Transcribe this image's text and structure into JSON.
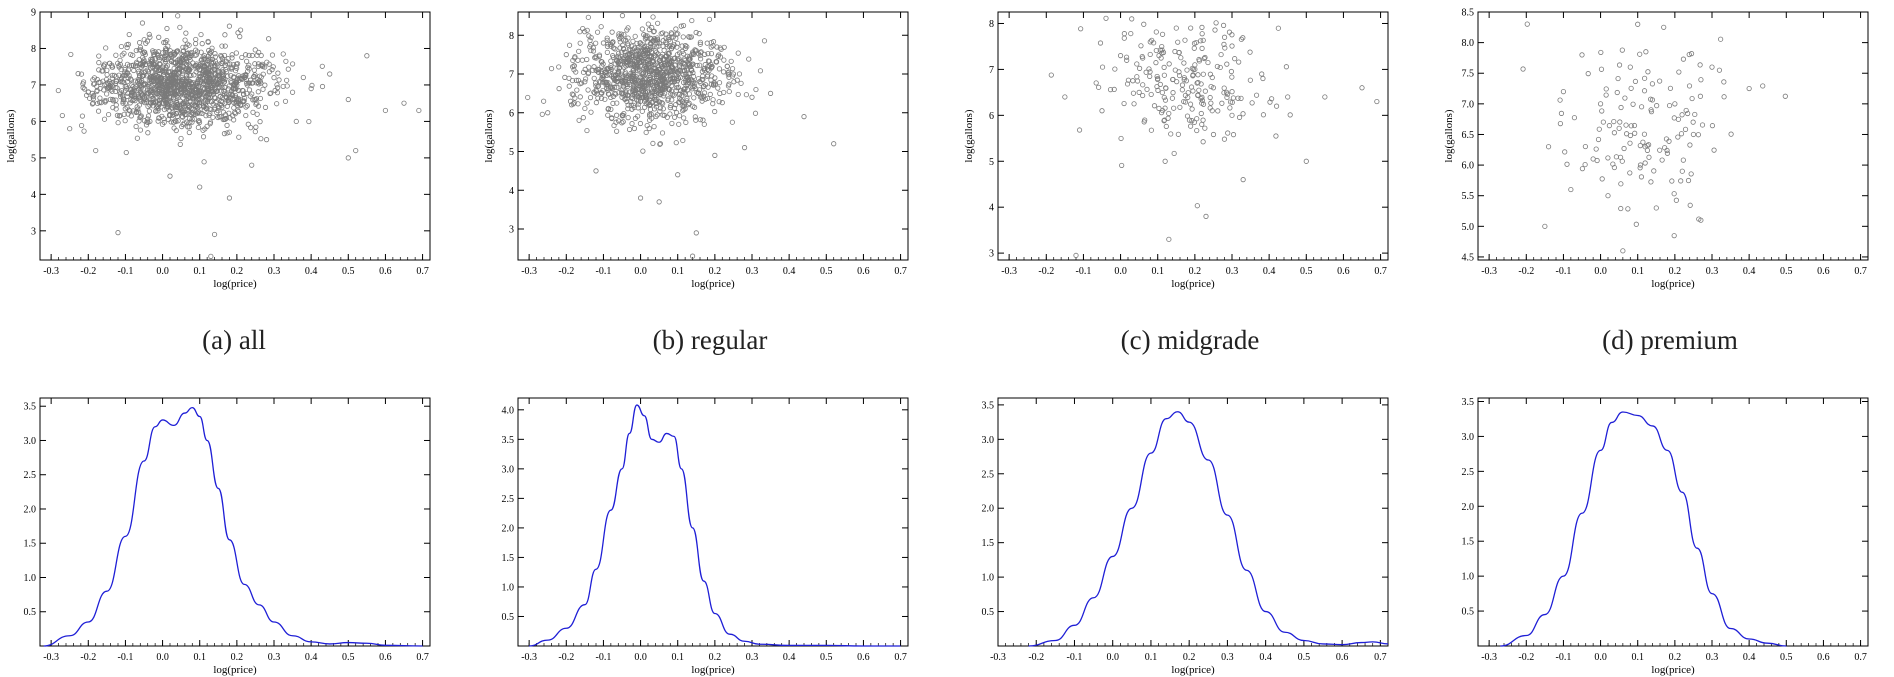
{
  "figure": {
    "captions": [
      "(a) all",
      "(b) regular",
      "(c) midgrade",
      "(d) premium"
    ]
  },
  "colors": {
    "scatter_marker": "#7a7a7a",
    "density_line": "#1f1fd6",
    "axis": "#000000"
  },
  "chart_data": [
    {
      "id": "scatter-all",
      "type": "scatter",
      "title": "",
      "xlabel": "log(price)",
      "ylabel": "log(gallons)",
      "xlim": [
        -0.33,
        0.72
      ],
      "ylim": [
        2.2,
        9.0
      ],
      "xticks": [
        -0.3,
        -0.2,
        -0.1,
        0.0,
        0.1,
        0.2,
        0.3,
        0.4,
        0.5,
        0.6,
        0.7
      ],
      "xtick_labels": [
        "-0.3",
        "-0.2",
        "-0.1",
        "0.0",
        "0.1",
        "0.2",
        "0.3",
        "0.4",
        "0.5",
        "0.6",
        "0.7"
      ],
      "yticks": [
        3,
        4,
        5,
        6,
        7,
        8,
        9
      ],
      "ytick_labels": [
        "3",
        "4",
        "5",
        "6",
        "7",
        "8",
        "9"
      ],
      "grid": false,
      "marker": "open-circle",
      "points": [
        [
          -0.2,
          6.8
        ],
        [
          -0.15,
          7.4
        ],
        [
          -0.1,
          6.5
        ],
        [
          -0.05,
          7.9
        ],
        [
          0.0,
          7.1
        ],
        [
          0.03,
          6.2
        ],
        [
          0.06,
          7.6
        ],
        [
          0.09,
          6.9
        ],
        [
          0.12,
          7.3
        ],
        [
          0.15,
          6.4
        ],
        [
          0.2,
          7.0
        ],
        [
          0.25,
          6.6
        ],
        [
          0.3,
          7.2
        ],
        [
          0.35,
          6.8
        ],
        [
          0.4,
          6.9
        ],
        [
          0.45,
          7.3
        ],
        [
          0.5,
          6.6
        ],
        [
          0.55,
          7.8
        ],
        [
          0.6,
          6.3
        ],
        [
          0.65,
          6.5
        ],
        [
          0.69,
          6.3
        ],
        [
          -0.12,
          2.95
        ],
        [
          0.14,
          2.9
        ],
        [
          0.13,
          2.3
        ],
        [
          0.5,
          5.0
        ],
        [
          0.52,
          5.2
        ],
        [
          -0.25,
          5.8
        ],
        [
          0.02,
          4.5
        ],
        [
          0.1,
          4.2
        ],
        [
          0.18,
          3.9
        ],
        [
          0.24,
          4.8
        ],
        [
          0.28,
          5.5
        ],
        [
          -0.18,
          5.2
        ],
        [
          0.36,
          6.0
        ]
      ]
    },
    {
      "id": "scatter-regular",
      "type": "scatter",
      "title": "",
      "xlabel": "log(price)",
      "ylabel": "log(gallons)",
      "xlim": [
        -0.33,
        0.72
      ],
      "ylim": [
        2.2,
        8.6
      ],
      "xticks": [
        -0.3,
        -0.2,
        -0.1,
        0.0,
        0.1,
        0.2,
        0.3,
        0.4,
        0.5,
        0.6,
        0.7
      ],
      "xtick_labels": [
        "-0.3",
        "-0.2",
        "-0.1",
        "0.0",
        "0.1",
        "0.2",
        "0.3",
        "0.4",
        "0.5",
        "0.6",
        "0.7"
      ],
      "yticks": [
        3,
        4,
        5,
        6,
        7,
        8
      ],
      "ytick_labels": [
        "3",
        "4",
        "5",
        "6",
        "7",
        "8"
      ],
      "grid": false,
      "marker": "open-circle",
      "points": [
        [
          -0.25,
          6.0
        ],
        [
          -0.2,
          7.5
        ],
        [
          -0.15,
          6.8
        ],
        [
          -0.1,
          7.8
        ],
        [
          -0.05,
          6.4
        ],
        [
          0.0,
          7.2
        ],
        [
          0.03,
          8.2
        ],
        [
          0.06,
          6.6
        ],
        [
          0.09,
          7.4
        ],
        [
          0.12,
          6.1
        ],
        [
          0.15,
          7.6
        ],
        [
          0.2,
          6.9
        ],
        [
          0.25,
          7.0
        ],
        [
          0.3,
          6.4
        ],
        [
          0.35,
          6.5
        ],
        [
          0.44,
          5.9
        ],
        [
          0.52,
          5.2
        ],
        [
          0.15,
          2.9
        ],
        [
          0.14,
          2.3
        ],
        [
          0.0,
          3.8
        ],
        [
          0.05,
          3.7
        ],
        [
          0.1,
          4.4
        ],
        [
          -0.12,
          4.5
        ],
        [
          0.2,
          4.9
        ],
        [
          0.28,
          5.1
        ]
      ]
    },
    {
      "id": "scatter-midgrade",
      "type": "scatter",
      "title": "",
      "xlabel": "log(price)",
      "ylabel": "log(gallons)",
      "xlim": [
        -0.33,
        0.72
      ],
      "ylim": [
        2.85,
        8.25
      ],
      "xticks": [
        -0.3,
        -0.2,
        -0.1,
        0.0,
        0.1,
        0.2,
        0.3,
        0.4,
        0.5,
        0.6,
        0.7
      ],
      "xtick_labels": [
        "-0.3",
        "-0.2",
        "-0.1",
        "0.0",
        "0.1",
        "0.2",
        "0.3",
        "0.4",
        "0.5",
        "0.6",
        "0.7"
      ],
      "yticks": [
        3,
        4,
        5,
        6,
        7,
        8
      ],
      "ytick_labels": [
        "3",
        "4",
        "5",
        "6",
        "7",
        "8"
      ],
      "grid": false,
      "marker": "open-circle",
      "points": [
        [
          -0.15,
          6.4
        ],
        [
          -0.12,
          2.95
        ],
        [
          -0.05,
          6.1
        ],
        [
          0.0,
          7.3
        ],
        [
          0.03,
          8.1
        ],
        [
          0.05,
          6.5
        ],
        [
          0.08,
          7.6
        ],
        [
          0.1,
          6.8
        ],
        [
          0.12,
          5.0
        ],
        [
          0.13,
          3.3
        ],
        [
          0.15,
          7.9
        ],
        [
          0.17,
          6.3
        ],
        [
          0.2,
          7.1
        ],
        [
          0.23,
          3.8
        ],
        [
          0.25,
          6.6
        ],
        [
          0.28,
          7.7
        ],
        [
          0.3,
          6.0
        ],
        [
          0.33,
          4.6
        ],
        [
          0.38,
          6.9
        ],
        [
          0.42,
          6.2
        ],
        [
          0.45,
          6.4
        ],
        [
          0.5,
          5.0
        ],
        [
          0.55,
          6.4
        ],
        [
          0.65,
          6.6
        ],
        [
          0.69,
          6.3
        ]
      ]
    },
    {
      "id": "scatter-premium",
      "type": "scatter",
      "title": "",
      "xlabel": "log(price)",
      "ylabel": "log(gallons)",
      "xlim": [
        -0.33,
        0.72
      ],
      "ylim": [
        4.45,
        8.5
      ],
      "xticks": [
        -0.3,
        -0.2,
        -0.1,
        0.0,
        0.1,
        0.2,
        0.3,
        0.4,
        0.5,
        0.6,
        0.7
      ],
      "xtick_labels": [
        "-0.3",
        "-0.2",
        "-0.1",
        "0.0",
        "0.1",
        "0.2",
        "0.3",
        "0.4",
        "0.5",
        "0.6",
        "0.7"
      ],
      "yticks": [
        4.5,
        5.0,
        5.5,
        6.0,
        6.5,
        7.0,
        7.5,
        8.0,
        8.5
      ],
      "ytick_labels": [
        "4.5",
        "5.0",
        "5.5",
        "6.0",
        "6.5",
        "7.0",
        "7.5",
        "8.0",
        "8.5"
      ],
      "grid": false,
      "marker": "open-circle",
      "points": [
        [
          -0.15,
          5.0
        ],
        [
          -0.14,
          6.3
        ],
        [
          -0.1,
          7.2
        ],
        [
          -0.08,
          5.6
        ],
        [
          -0.05,
          7.8
        ],
        [
          -0.02,
          6.1
        ],
        [
          0.0,
          7.0
        ],
        [
          0.02,
          5.5
        ],
        [
          0.05,
          6.6
        ],
        [
          0.06,
          4.6
        ],
        [
          0.08,
          7.6
        ],
        [
          0.1,
          8.3
        ],
        [
          0.12,
          6.3
        ],
        [
          0.15,
          5.3
        ],
        [
          0.17,
          8.25
        ],
        [
          0.2,
          7.0
        ],
        [
          0.22,
          5.9
        ],
        [
          0.25,
          6.5
        ],
        [
          0.27,
          5.1
        ],
        [
          0.3,
          7.6
        ],
        [
          0.32,
          7.55
        ],
        [
          0.4,
          7.25
        ]
      ]
    },
    {
      "id": "density-all",
      "type": "line",
      "title": "",
      "xlabel": "log(price)",
      "ylabel": "",
      "xlim": [
        -0.33,
        0.72
      ],
      "ylim": [
        0,
        3.62
      ],
      "xticks": [
        -0.3,
        -0.2,
        -0.1,
        0.0,
        0.1,
        0.2,
        0.3,
        0.4,
        0.5,
        0.6,
        0.7
      ],
      "xtick_labels": [
        "-0.3",
        "-0.2",
        "-0.1",
        "0.0",
        "0.1",
        "0.2",
        "0.3",
        "0.4",
        "0.5",
        "0.6",
        "0.7"
      ],
      "yticks": [
        0.5,
        1.0,
        1.5,
        2.0,
        2.5,
        3.0,
        3.5
      ],
      "ytick_labels": [
        "0.5",
        "1.0",
        "1.5",
        "2.0",
        "2.5",
        "3.0",
        "3.5"
      ],
      "grid": false,
      "x": [
        -0.32,
        -0.25,
        -0.2,
        -0.15,
        -0.1,
        -0.05,
        -0.02,
        0.0,
        0.03,
        0.06,
        0.08,
        0.1,
        0.12,
        0.15,
        0.18,
        0.22,
        0.26,
        0.3,
        0.35,
        0.4,
        0.45,
        0.5,
        0.55,
        0.6,
        0.7
      ],
      "y": [
        0.0,
        0.15,
        0.35,
        0.8,
        1.6,
        2.7,
        3.2,
        3.3,
        3.22,
        3.4,
        3.48,
        3.35,
        3.0,
        2.3,
        1.55,
        0.9,
        0.6,
        0.35,
        0.15,
        0.06,
        0.03,
        0.05,
        0.04,
        0.01,
        0.0
      ]
    },
    {
      "id": "density-regular",
      "type": "line",
      "title": "",
      "xlabel": "log(price)",
      "ylabel": "",
      "xlim": [
        -0.33,
        0.72
      ],
      "ylim": [
        0,
        4.2
      ],
      "xticks": [
        -0.3,
        -0.2,
        -0.1,
        0.0,
        0.1,
        0.2,
        0.3,
        0.4,
        0.5,
        0.6,
        0.7
      ],
      "xtick_labels": [
        "-0.3",
        "-0.2",
        "-0.1",
        "0.0",
        "0.1",
        "0.2",
        "0.3",
        "0.4",
        "0.5",
        "0.6",
        "0.7"
      ],
      "yticks": [
        0.5,
        1.0,
        1.5,
        2.0,
        2.5,
        3.0,
        3.5,
        4.0
      ],
      "ytick_labels": [
        "0.5",
        "1.0",
        "1.5",
        "2.0",
        "2.5",
        "3.0",
        "3.5",
        "4.0"
      ],
      "grid": false,
      "x": [
        -0.3,
        -0.25,
        -0.2,
        -0.15,
        -0.12,
        -0.08,
        -0.05,
        -0.03,
        -0.01,
        0.01,
        0.03,
        0.05,
        0.07,
        0.09,
        0.11,
        0.14,
        0.17,
        0.2,
        0.24,
        0.28,
        0.32,
        0.4,
        0.5,
        0.6,
        0.7
      ],
      "y": [
        0.0,
        0.1,
        0.3,
        0.7,
        1.3,
        2.3,
        3.0,
        3.6,
        4.08,
        3.9,
        3.5,
        3.45,
        3.6,
        3.55,
        3.0,
        2.0,
        1.1,
        0.55,
        0.2,
        0.08,
        0.03,
        0.01,
        0.01,
        0.0,
        0.0
      ]
    },
    {
      "id": "density-midgrade",
      "type": "line",
      "title": "",
      "xlabel": "log(price)",
      "ylabel": "",
      "xlim": [
        -0.3,
        0.72
      ],
      "ylim": [
        0,
        3.6
      ],
      "xticks": [
        -0.3,
        -0.2,
        -0.1,
        0.0,
        0.1,
        0.2,
        0.3,
        0.4,
        0.5,
        0.6,
        0.7
      ],
      "xtick_labels": [
        "-0.3",
        "-0.2",
        "-0.1",
        "0.0",
        "0.1",
        "0.2",
        "0.3",
        "0.4",
        "0.5",
        "0.6",
        "0.7"
      ],
      "yticks": [
        0.5,
        1.0,
        1.5,
        2.0,
        2.5,
        3.0,
        3.5
      ],
      "ytick_labels": [
        "0.5",
        "1.0",
        "1.5",
        "2.0",
        "2.5",
        "3.0",
        "3.5"
      ],
      "grid": false,
      "x": [
        -0.22,
        -0.15,
        -0.1,
        -0.05,
        0.0,
        0.05,
        0.1,
        0.14,
        0.17,
        0.2,
        0.25,
        0.3,
        0.35,
        0.4,
        0.45,
        0.5,
        0.55,
        0.6,
        0.65,
        0.68,
        0.72
      ],
      "y": [
        0.0,
        0.08,
        0.3,
        0.7,
        1.3,
        2.0,
        2.8,
        3.3,
        3.4,
        3.25,
        2.7,
        1.9,
        1.1,
        0.5,
        0.2,
        0.08,
        0.03,
        0.02,
        0.05,
        0.06,
        0.03
      ]
    },
    {
      "id": "density-premium",
      "type": "line",
      "title": "",
      "xlabel": "log(price)",
      "ylabel": "",
      "xlim": [
        -0.33,
        0.72
      ],
      "ylim": [
        0,
        3.55
      ],
      "xticks": [
        -0.3,
        -0.2,
        -0.1,
        0.0,
        0.1,
        0.2,
        0.3,
        0.4,
        0.5,
        0.6,
        0.7
      ],
      "xtick_labels": [
        "-0.3",
        "-0.2",
        "-0.1",
        "0.0",
        "0.1",
        "0.2",
        "0.3",
        "0.4",
        "0.5",
        "0.6",
        "0.7"
      ],
      "yticks": [
        0.5,
        1.0,
        1.5,
        2.0,
        2.5,
        3.0,
        3.5
      ],
      "ytick_labels": [
        "0.5",
        "1.0",
        "1.5",
        "2.0",
        "2.5",
        "3.0",
        "3.5"
      ],
      "grid": false,
      "x": [
        -0.27,
        -0.2,
        -0.15,
        -0.1,
        -0.05,
        0.0,
        0.03,
        0.06,
        0.1,
        0.14,
        0.18,
        0.22,
        0.26,
        0.3,
        0.35,
        0.4,
        0.45,
        0.5
      ],
      "y": [
        0.0,
        0.15,
        0.45,
        1.0,
        1.9,
        2.8,
        3.2,
        3.35,
        3.3,
        3.15,
        2.8,
        2.2,
        1.4,
        0.75,
        0.25,
        0.1,
        0.04,
        0.0
      ]
    }
  ]
}
